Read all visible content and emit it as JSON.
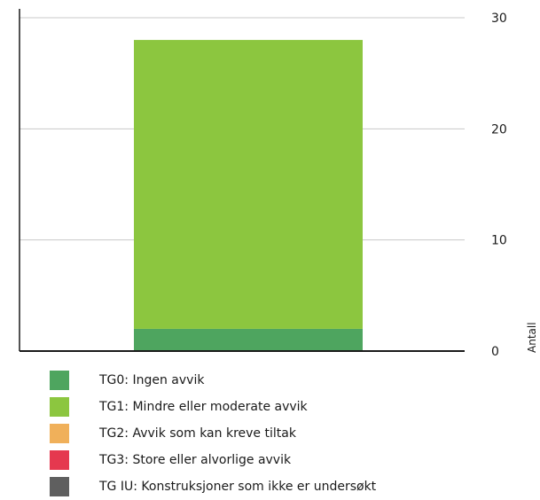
{
  "chart_data": {
    "type": "bar",
    "stacked": true,
    "categories": [
      ""
    ],
    "series": [
      {
        "name": "TG0: Ingen avvik",
        "values": [
          2
        ],
        "color": "#4ea55f"
      },
      {
        "name": "TG1: Mindre eller moderate avvik",
        "values": [
          26
        ],
        "color": "#8cc63f"
      },
      {
        "name": "TG2: Avvik som kan kreve tiltak",
        "values": [
          0
        ],
        "color": "#f0b05a"
      },
      {
        "name": "TG3: Store eller alvorlige avvik",
        "values": [
          0
        ],
        "color": "#e5384f"
      },
      {
        "name": "TG IU: Konstruksjoner som ikke er undersøkt",
        "values": [
          0
        ],
        "color": "#5f5f5f"
      }
    ],
    "ylabel": "Antall",
    "ylim": [
      0,
      30
    ],
    "yticks": [
      "0",
      "10",
      "20",
      "30"
    ],
    "yaxis_side": "right",
    "grid": true,
    "legend_position": "bottom"
  }
}
